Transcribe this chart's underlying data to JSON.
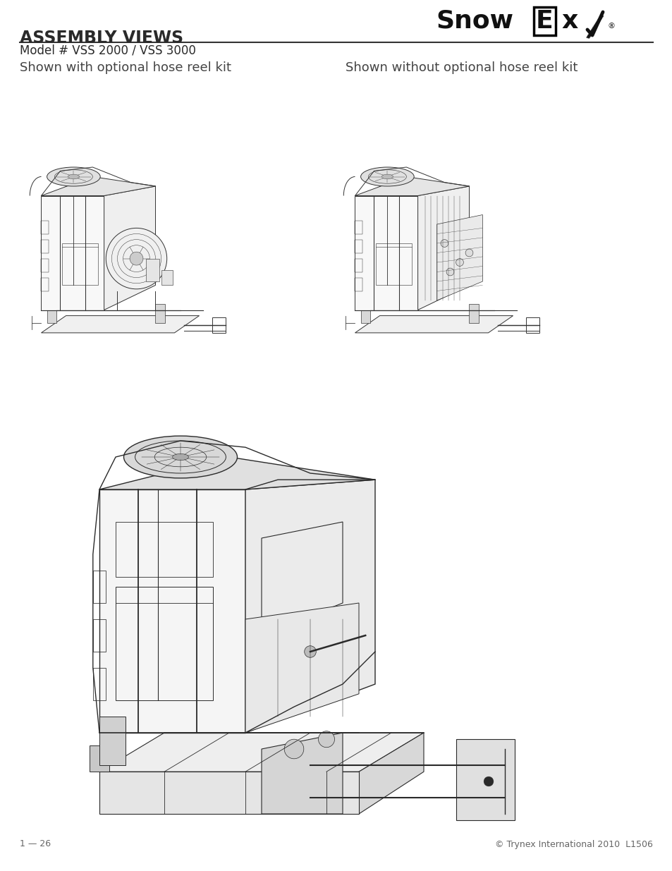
{
  "page_bg": "#ffffff",
  "title": "ASSEMBLY VIEWS",
  "subtitle": "Model # VSS 2000 / VSS 3000",
  "caption_left": "Shown with optional hose reel kit",
  "caption_right": "Shown without optional hose reel kit",
  "footer_left": "1 — 26",
  "footer_right": "© Trynex International 2010  L1506",
  "title_fontsize": 17,
  "subtitle_fontsize": 12,
  "caption_fontsize": 13,
  "footer_fontsize": 9,
  "title_color": "#2a2a2a",
  "subtitle_color": "#2a2a2a",
  "caption_color": "#444444",
  "footer_color": "#666666",
  "line_color": "#333333",
  "lc": "#2a2a2a",
  "lw": 0.9
}
